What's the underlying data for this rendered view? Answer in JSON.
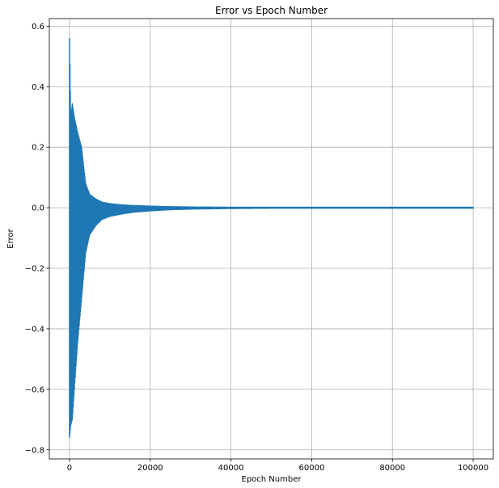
{
  "chart_data": {
    "type": "line",
    "title": "Error vs Epoch Number",
    "xlabel": "Epoch Number",
    "ylabel": "Error",
    "xlim": [
      -5000,
      105000
    ],
    "ylim": [
      -0.83,
      0.625
    ],
    "xticks": [
      0,
      20000,
      40000,
      60000,
      80000,
      100000
    ],
    "xtick_labels": [
      "0",
      "20000",
      "40000",
      "60000",
      "80000",
      "100000"
    ],
    "yticks": [
      -0.8,
      -0.6,
      -0.4,
      -0.2,
      0.0,
      0.2,
      0.4,
      0.6
    ],
    "ytick_labels": [
      "−0.8",
      "−0.6",
      "−0.4",
      "−0.2",
      "0.0",
      "0.2",
      "0.4",
      "0.6"
    ],
    "grid": true,
    "series": [
      {
        "color": "#1f77b4",
        "description_note": "",
        "envelope": {
          "x": [
            0,
            300,
            700,
            1200,
            2000,
            3000,
            4000,
            5000,
            6500,
            8000,
            10000,
            13000,
            16000,
            20000,
            25000,
            30000,
            40000,
            50000,
            60000,
            80000,
            100000
          ],
          "upper": [
            0.56,
            0.3,
            0.345,
            0.3,
            0.25,
            0.2,
            0.08,
            0.045,
            0.03,
            0.02,
            0.015,
            0.011,
            0.009,
            0.007,
            0.005,
            0.004,
            0.003,
            0.003,
            0.003,
            0.003,
            0.003
          ],
          "lower": [
            -0.76,
            -0.72,
            -0.7,
            -0.6,
            -0.45,
            -0.3,
            -0.15,
            -0.09,
            -0.06,
            -0.04,
            -0.03,
            -0.022,
            -0.016,
            -0.012,
            -0.008,
            -0.006,
            -0.004,
            -0.003,
            -0.003,
            -0.003,
            -0.003
          ]
        }
      }
    ]
  }
}
